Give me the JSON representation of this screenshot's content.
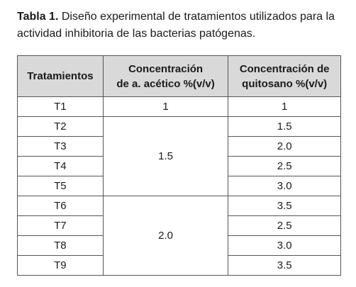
{
  "caption": {
    "label": "Tabla 1.",
    "text": "Diseño experimental de tratamientos utilizados para la actividad inhibitoria de las bacterias patógenas."
  },
  "table": {
    "headers": [
      [
        "Tratamientos"
      ],
      [
        "Concentración",
        "de a. acético %(v/v)"
      ],
      [
        "Concentración de",
        "quitosano %(v/v)"
      ]
    ],
    "groups": [
      {
        "acetic": "1",
        "rows": [
          [
            "T1",
            "1"
          ]
        ]
      },
      {
        "acetic": "1.5",
        "rows": [
          [
            "T2",
            "1.5"
          ],
          [
            "T3",
            "2.0"
          ],
          [
            "T4",
            "2.5"
          ],
          [
            "T5",
            "3.0"
          ]
        ]
      },
      {
        "acetic": "2.0",
        "rows": [
          [
            "T6",
            "3.5"
          ],
          [
            "T7",
            "2.5"
          ],
          [
            "T8",
            "3.0"
          ],
          [
            "T9",
            "3.5"
          ]
        ]
      }
    ]
  }
}
